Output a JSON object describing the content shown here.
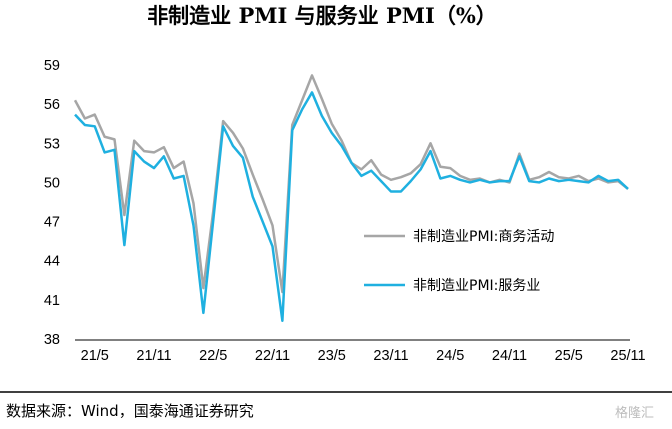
{
  "chart_data": {
    "type": "line",
    "title": "非制造业 PMI 与服务业 PMI（%）",
    "xlabel": "",
    "ylabel": "",
    "ylim": [
      38,
      59
    ],
    "yticks": [
      38,
      41,
      44,
      47,
      50,
      53,
      56,
      59
    ],
    "x": [
      "21/3",
      "21/4",
      "21/5",
      "21/6",
      "21/7",
      "21/8",
      "21/9",
      "21/10",
      "21/11",
      "21/12",
      "22/1",
      "22/2",
      "22/3",
      "22/4",
      "22/5",
      "22/6",
      "22/7",
      "22/8",
      "22/9",
      "22/10",
      "22/11",
      "22/12",
      "23/1",
      "23/2",
      "23/3",
      "23/4",
      "23/5",
      "23/6",
      "23/7",
      "23/8",
      "23/9",
      "23/10",
      "23/11",
      "23/12",
      "24/1",
      "24/2",
      "24/3",
      "24/4",
      "24/5",
      "24/6",
      "24/7",
      "24/8",
      "24/9",
      "24/10",
      "24/11",
      "24/12",
      "25/1",
      "25/2",
      "25/3",
      "25/4",
      "25/5",
      "25/6",
      "25/7",
      "25/8",
      "25/9",
      "25/10",
      "25/11"
    ],
    "x_tick_labels": [
      "21/5",
      "21/11",
      "22/5",
      "22/11",
      "23/5",
      "23/11",
      "24/5",
      "24/11",
      "25/5",
      "25/11"
    ],
    "series": [
      {
        "name": "非制造业PMI:商务活动",
        "color": "#a6a6a6",
        "values": [
          56.3,
          54.9,
          55.2,
          53.5,
          53.3,
          47.5,
          53.2,
          52.4,
          52.3,
          52.7,
          51.1,
          51.6,
          48.4,
          41.9,
          47.8,
          54.7,
          53.8,
          52.6,
          50.6,
          48.7,
          46.7,
          41.6,
          54.4,
          56.3,
          58.2,
          56.4,
          54.5,
          53.2,
          51.5,
          51.0,
          51.7,
          50.6,
          50.2,
          50.4,
          50.7,
          51.4,
          53.0,
          51.2,
          51.1,
          50.5,
          50.2,
          50.3,
          50.0,
          50.2,
          50.0,
          52.2,
          50.2,
          50.4,
          50.8,
          50.4,
          50.3,
          50.5,
          50.1,
          50.3,
          50.0,
          50.1,
          49.5
        ]
      },
      {
        "name": "非制造业PMI:服务业",
        "color": "#1fb0e0",
        "values": [
          55.2,
          54.4,
          54.3,
          52.3,
          52.5,
          45.2,
          52.4,
          51.6,
          51.1,
          52.0,
          50.3,
          50.5,
          46.7,
          40.0,
          47.1,
          54.3,
          52.8,
          51.9,
          48.9,
          47.0,
          45.1,
          39.4,
          54.0,
          55.6,
          56.9,
          55.1,
          53.8,
          52.8,
          51.5,
          50.5,
          50.9,
          50.1,
          49.3,
          49.3,
          50.1,
          51.0,
          52.4,
          50.3,
          50.5,
          50.2,
          50.0,
          50.2,
          50.0,
          50.1,
          50.1,
          52.0,
          50.1,
          50.0,
          50.3,
          50.1,
          50.2,
          50.1,
          50.0,
          50.5,
          50.1,
          50.2,
          49.5
        ]
      }
    ],
    "legend": [
      "非制造业PMI:商务活动",
      "非制造业PMI:服务业"
    ],
    "legend_placement": "inside-right",
    "grid": false
  },
  "source_note": "数据来源：Wind，国泰海通证券研究",
  "watermark": "格隆汇"
}
